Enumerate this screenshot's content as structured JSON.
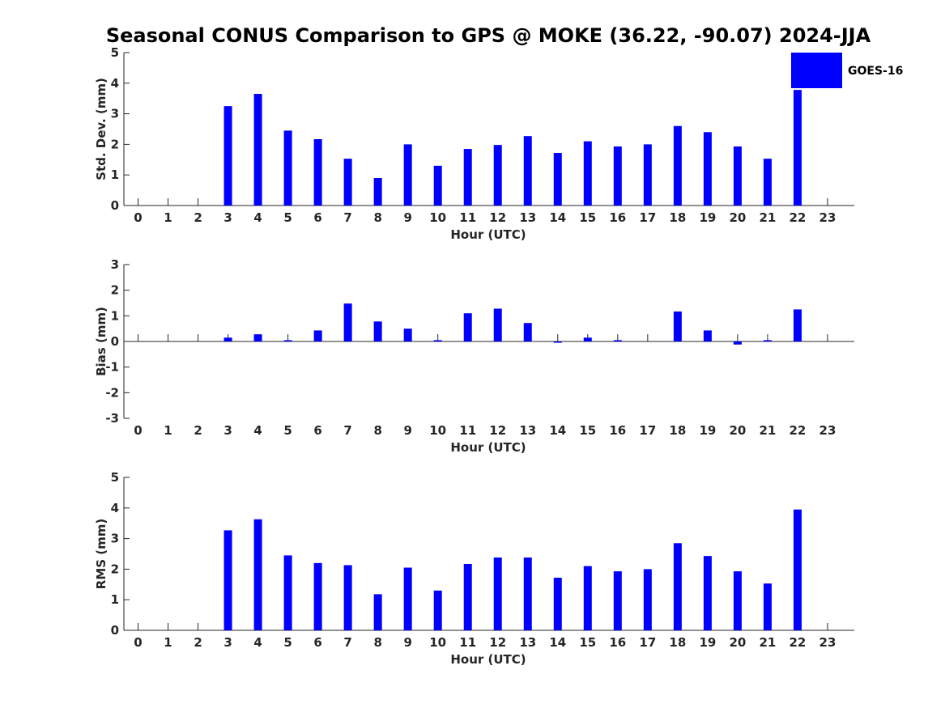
{
  "figure_title": "Seasonal CONUS Comparison to GPS @ MOKE (36.22, -90.07) 2024-JJA",
  "colors": {
    "bar": "#0000ff",
    "axis": "#262626"
  },
  "legend": {
    "label": "GOES-16",
    "placement": "top-right"
  },
  "chart_data": [
    {
      "type": "bar",
      "xlabel": "Hour (UTC)",
      "ylabel": "Std. Dev. (mm)",
      "ylim": [
        0,
        5
      ],
      "yticks": [
        "0",
        "1",
        "2",
        "3",
        "4",
        "5"
      ],
      "categories": [
        "0",
        "1",
        "2",
        "3",
        "4",
        "5",
        "6",
        "7",
        "8",
        "9",
        "10",
        "11",
        "12",
        "13",
        "14",
        "15",
        "16",
        "17",
        "18",
        "19",
        "20",
        "21",
        "22",
        "23"
      ],
      "series": [
        {
          "name": "GOES-16",
          "values": [
            null,
            null,
            null,
            3.25,
            3.65,
            2.45,
            2.17,
            1.53,
            0.9,
            2.0,
            1.3,
            1.85,
            1.98,
            2.27,
            1.72,
            2.1,
            1.93,
            2.0,
            2.6,
            2.4,
            1.93,
            1.53,
            3.78,
            null
          ]
        }
      ]
    },
    {
      "type": "bar",
      "xlabel": "Hour (UTC)",
      "ylabel": "Bias (mm)",
      "ylim": [
        -3,
        3
      ],
      "yticks": [
        "-3",
        "-2",
        "-1",
        "0",
        "1",
        "2",
        "3"
      ],
      "categories": [
        "0",
        "1",
        "2",
        "3",
        "4",
        "5",
        "6",
        "7",
        "8",
        "9",
        "10",
        "11",
        "12",
        "13",
        "14",
        "15",
        "16",
        "17",
        "18",
        "19",
        "20",
        "21",
        "22",
        "23"
      ],
      "series": [
        {
          "name": "GOES-16",
          "values": [
            null,
            null,
            null,
            0.15,
            0.28,
            0.05,
            0.43,
            1.48,
            0.78,
            0.5,
            0.05,
            1.1,
            1.28,
            0.72,
            -0.05,
            0.15,
            0.05,
            null,
            1.17,
            0.43,
            -0.12,
            0.05,
            1.25,
            null
          ]
        }
      ]
    },
    {
      "type": "bar",
      "xlabel": "Hour (UTC)",
      "ylabel": "RMS (mm)",
      "ylim": [
        0,
        5
      ],
      "yticks": [
        "0",
        "1",
        "2",
        "3",
        "4",
        "5"
      ],
      "categories": [
        "0",
        "1",
        "2",
        "3",
        "4",
        "5",
        "6",
        "7",
        "8",
        "9",
        "10",
        "11",
        "12",
        "13",
        "14",
        "15",
        "16",
        "17",
        "18",
        "19",
        "20",
        "21",
        "22",
        "23"
      ],
      "series": [
        {
          "name": "GOES-16",
          "values": [
            null,
            null,
            null,
            3.27,
            3.63,
            2.45,
            2.2,
            2.13,
            1.18,
            2.05,
            1.3,
            2.17,
            2.38,
            2.38,
            1.72,
            2.1,
            1.93,
            2.0,
            2.85,
            2.43,
            1.93,
            1.53,
            3.95,
            null
          ]
        }
      ]
    }
  ]
}
